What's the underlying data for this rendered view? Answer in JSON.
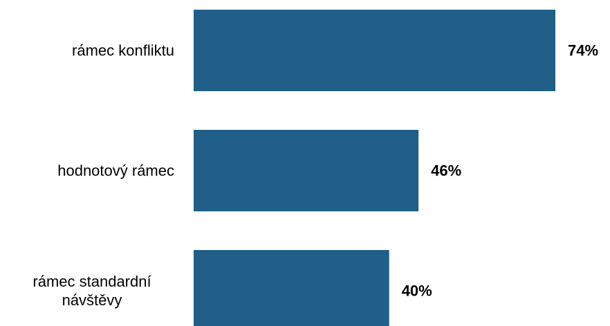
{
  "chart_data": {
    "type": "bar",
    "orientation": "horizontal",
    "categories": [
      "rámec konfliktu",
      "hodnotový rámec",
      "rámec standardní návštěvy"
    ],
    "category_lines": [
      [
        "rámec konfliktu"
      ],
      [
        "hodnotový rámec"
      ],
      [
        "rámec standardní",
        "návštěvy"
      ]
    ],
    "values": [
      74,
      46,
      40
    ],
    "value_labels": [
      "74%",
      "46%",
      "40%"
    ],
    "unit": "%",
    "xlim": [
      0,
      100
    ],
    "bar_color": "#1f5f88",
    "grid": false,
    "legend": "none",
    "title": "",
    "xlabel": "",
    "ylabel": ""
  }
}
